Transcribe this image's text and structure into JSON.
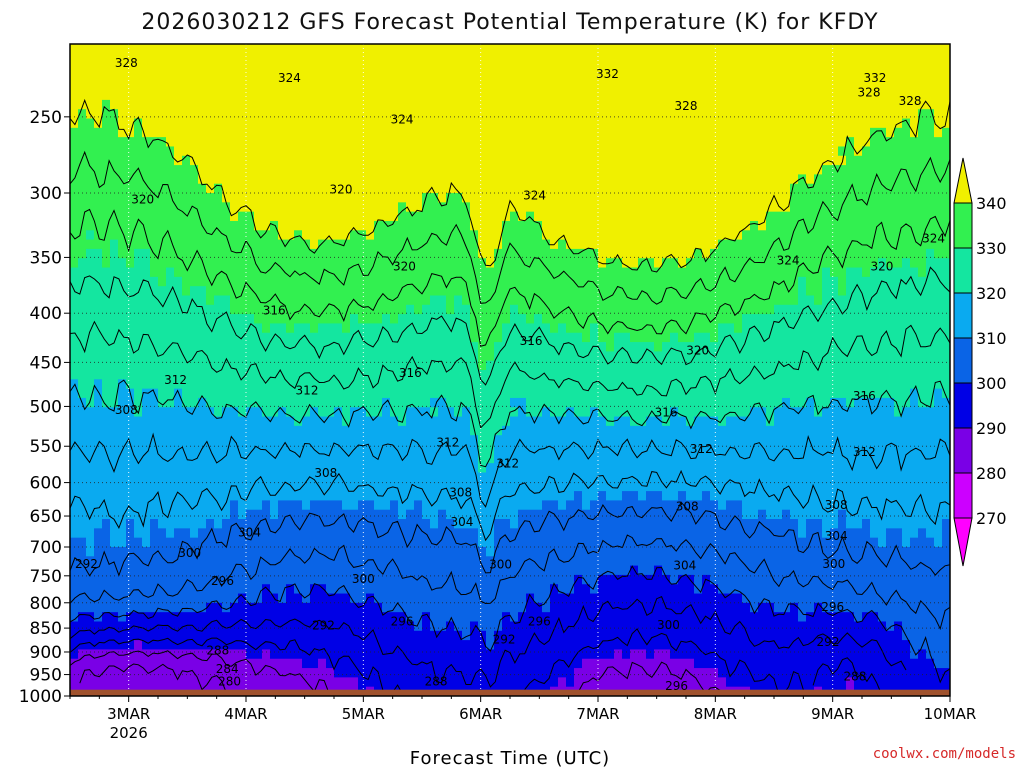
{
  "chart_data": {
    "type": "contour",
    "title": "2026030212 GFS Forecast Potential Temperature (K) for KFDY",
    "xlabel": "Forecast Time (UTC)",
    "credit": "coolwx.com/models",
    "x_ticks": [
      {
        "label": "3MAR",
        "sub": "2026",
        "day": 3
      },
      {
        "label": "4MAR",
        "day": 4
      },
      {
        "label": "5MAR",
        "day": 5
      },
      {
        "label": "6MAR",
        "day": 6
      },
      {
        "label": "7MAR",
        "day": 7
      },
      {
        "label": "8MAR",
        "day": 8
      },
      {
        "label": "9MAR",
        "day": 9
      },
      {
        "label": "10MAR",
        "day": 10
      }
    ],
    "x_range_days": [
      2.5,
      10
    ],
    "y_scale": "log",
    "y_range_hpa": [
      1000,
      210
    ],
    "y_ticks": [
      250,
      300,
      350,
      400,
      450,
      500,
      550,
      600,
      650,
      700,
      750,
      800,
      850,
      900,
      950,
      1000
    ],
    "surface_pressure_hpa": 985,
    "colorbar": {
      "levels": [
        270,
        280,
        290,
        300,
        310,
        320,
        330,
        340
      ],
      "colors": [
        "#ff00ff",
        "#cc00ff",
        "#7a00e6",
        "#0000e6",
        "#0a64e6",
        "#0aaaf0",
        "#14e6a0",
        "#32f050",
        "#8cf000",
        "#f0f000"
      ]
    },
    "contour_labels": [
      {
        "text": "328",
        "day": 2.98,
        "p": 220
      },
      {
        "text": "324",
        "day": 4.37,
        "p": 228
      },
      {
        "text": "324",
        "day": 5.33,
        "p": 252
      },
      {
        "text": "332",
        "day": 7.08,
        "p": 226
      },
      {
        "text": "328",
        "day": 7.75,
        "p": 244
      },
      {
        "text": "332",
        "day": 9.36,
        "p": 228
      },
      {
        "text": "328",
        "day": 9.31,
        "p": 236
      },
      {
        "text": "328",
        "day": 9.66,
        "p": 241
      },
      {
        "text": "320",
        "day": 3.12,
        "p": 305
      },
      {
        "text": "320",
        "day": 4.81,
        "p": 298
      },
      {
        "text": "324",
        "day": 6.46,
        "p": 302
      },
      {
        "text": "324",
        "day": 9.86,
        "p": 335
      },
      {
        "text": "324",
        "day": 8.62,
        "p": 353
      },
      {
        "text": "320",
        "day": 9.42,
        "p": 358
      },
      {
        "text": "320",
        "day": 5.35,
        "p": 358
      },
      {
        "text": "316",
        "day": 4.24,
        "p": 398
      },
      {
        "text": "316",
        "day": 6.43,
        "p": 428
      },
      {
        "text": "320",
        "day": 7.85,
        "p": 438
      },
      {
        "text": "316",
        "day": 5.4,
        "p": 462
      },
      {
        "text": "312",
        "day": 3.4,
        "p": 470
      },
      {
        "text": "312",
        "day": 4.52,
        "p": 482
      },
      {
        "text": "316",
        "day": 9.27,
        "p": 488
      },
      {
        "text": "308",
        "day": 2.98,
        "p": 505
      },
      {
        "text": "316",
        "day": 7.58,
        "p": 508
      },
      {
        "text": "312",
        "day": 5.72,
        "p": 546
      },
      {
        "text": "312",
        "day": 7.88,
        "p": 554
      },
      {
        "text": "312",
        "day": 9.27,
        "p": 558
      },
      {
        "text": "312",
        "day": 6.23,
        "p": 574
      },
      {
        "text": "308",
        "day": 4.68,
        "p": 587
      },
      {
        "text": "308",
        "day": 5.83,
        "p": 615
      },
      {
        "text": "308",
        "day": 7.76,
        "p": 636
      },
      {
        "text": "308",
        "day": 9.03,
        "p": 634
      },
      {
        "text": "304",
        "day": 5.84,
        "p": 660
      },
      {
        "text": "304",
        "day": 4.03,
        "p": 677
      },
      {
        "text": "304",
        "day": 9.03,
        "p": 683
      },
      {
        "text": "300",
        "day": 3.52,
        "p": 711
      },
      {
        "text": "292",
        "day": 2.64,
        "p": 730
      },
      {
        "text": "300",
        "day": 6.17,
        "p": 731
      },
      {
        "text": "304",
        "day": 7.74,
        "p": 733
      },
      {
        "text": "300",
        "day": 9.01,
        "p": 730
      },
      {
        "text": "296",
        "day": 3.8,
        "p": 760
      },
      {
        "text": "300",
        "day": 5.0,
        "p": 757
      },
      {
        "text": "296",
        "day": 9.0,
        "p": 809
      },
      {
        "text": "296",
        "day": 5.33,
        "p": 838
      },
      {
        "text": "296",
        "day": 6.5,
        "p": 838
      },
      {
        "text": "292",
        "day": 4.66,
        "p": 846
      },
      {
        "text": "300",
        "day": 7.6,
        "p": 845
      },
      {
        "text": "292",
        "day": 6.2,
        "p": 875
      },
      {
        "text": "292",
        "day": 8.96,
        "p": 880
      },
      {
        "text": "288",
        "day": 3.76,
        "p": 898
      },
      {
        "text": "284",
        "day": 3.84,
        "p": 938
      },
      {
        "text": "288",
        "day": 9.19,
        "p": 955
      },
      {
        "text": "280",
        "day": 3.86,
        "p": 967
      },
      {
        "text": "288",
        "day": 5.62,
        "p": 967
      },
      {
        "text": "296",
        "day": 7.67,
        "p": 978
      }
    ]
  }
}
